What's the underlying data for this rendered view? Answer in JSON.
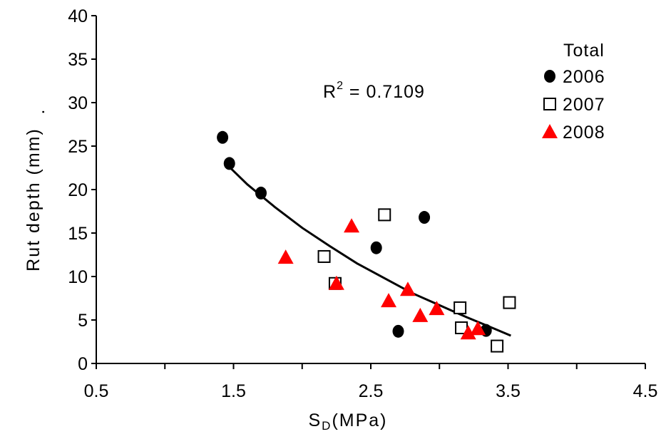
{
  "chart_data": {
    "type": "scatter",
    "title": "",
    "xlabel": "S",
    "xlabel_sub": "D",
    "xlabel_unit": "(MPa)",
    "ylabel": "Rut depth (mm)",
    "ylabel_trail": ".",
    "xlim": [
      0.5,
      4.5
    ],
    "ylim": [
      0,
      40
    ],
    "xticks": [
      "0.5",
      "1.5",
      "2.5",
      "3.5",
      "4.5"
    ],
    "yticks": [
      "0",
      "5",
      "10",
      "15",
      "20",
      "25",
      "30",
      "35",
      "40"
    ],
    "grid": false,
    "legend": {
      "title": "Total",
      "placement": "top-right"
    },
    "annotation": {
      "prefix": "R",
      "sup": "2",
      "rest": " = 0.7109"
    },
    "series": [
      {
        "name": "2006",
        "marker": "filled-circle",
        "color": "#000000",
        "x": [
          1.42,
          1.47,
          1.7,
          2.54,
          2.7,
          2.89,
          3.34
        ],
        "y": [
          26.0,
          23.0,
          19.6,
          13.3,
          3.7,
          16.8,
          3.8
        ]
      },
      {
        "name": "2007",
        "marker": "open-square",
        "color": "#000000",
        "x": [
          2.16,
          2.24,
          2.6,
          3.15,
          3.16,
          3.42,
          3.51
        ],
        "y": [
          12.3,
          9.2,
          17.1,
          6.4,
          4.1,
          2.0,
          7.0
        ]
      },
      {
        "name": "2008",
        "marker": "filled-triangle",
        "color": "#ff0000",
        "x": [
          1.88,
          2.25,
          2.36,
          2.63,
          2.77,
          2.86,
          2.98,
          3.21,
          3.28
        ],
        "y": [
          12.2,
          9.2,
          15.8,
          7.2,
          8.5,
          5.5,
          6.3,
          3.5,
          4.0
        ]
      }
    ],
    "trendline": {
      "x": [
        1.47,
        1.6,
        1.8,
        2.0,
        2.2,
        2.4,
        2.6,
        2.8,
        3.0,
        3.2,
        3.4,
        3.52
      ],
      "y": [
        22.6,
        20.6,
        18.0,
        15.6,
        13.5,
        11.5,
        9.8,
        8.1,
        6.7,
        5.3,
        4.0,
        3.2
      ]
    }
  }
}
